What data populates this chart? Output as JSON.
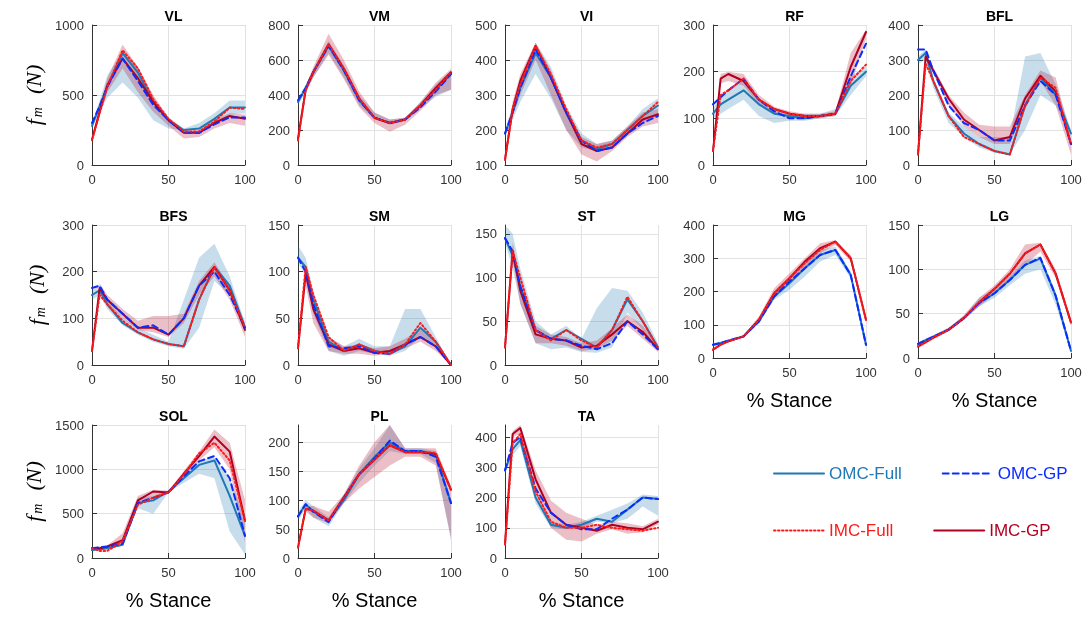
{
  "chart_data": [
    {
      "type": "line",
      "title": "VL",
      "ylabel": "f$_{m}$  (N)",
      "x": [
        0,
        5,
        10,
        20,
        30,
        40,
        50,
        60,
        70,
        80,
        90,
        100
      ],
      "xlim": [
        0,
        100
      ],
      "xticks": [
        0,
        50,
        100
      ],
      "ylim": [
        0,
        1000
      ],
      "yticks": [
        0,
        500,
        1000
      ],
      "grid": true,
      "marker": "none",
      "series": [
        {
          "color": "#1f78b4",
          "line_style": "solid",
          "values": [
            280,
            420,
            560,
            800,
            660,
            450,
            320,
            250,
            260,
            330,
            410,
            410
          ],
          "lower": [
            260,
            380,
            480,
            590,
            480,
            320,
            260,
            250,
            250,
            290,
            360,
            370
          ],
          "upper": [
            300,
            460,
            640,
            810,
            700,
            480,
            340,
            260,
            300,
            370,
            460,
            460
          ]
        },
        {
          "color": "#0a2cff",
          "line_style": "dashed",
          "values": [
            300,
            420,
            560,
            760,
            600,
            430,
            320,
            230,
            230,
            290,
            340,
            340
          ]
        },
        {
          "color": "#ff1a1a",
          "line_style": "dotted",
          "values": [
            180,
            370,
            560,
            820,
            690,
            470,
            330,
            240,
            240,
            310,
            410,
            400
          ]
        },
        {
          "color": "#b00020",
          "line_style": "solid",
          "values": [
            180,
            380,
            570,
            760,
            620,
            450,
            320,
            230,
            230,
            300,
            350,
            330
          ],
          "lower": [
            170,
            350,
            520,
            690,
            520,
            380,
            280,
            190,
            200,
            260,
            300,
            280
          ],
          "upper": [
            200,
            420,
            620,
            860,
            700,
            500,
            340,
            250,
            250,
            320,
            370,
            360
          ]
        }
      ]
    },
    {
      "type": "line",
      "title": "VM",
      "x": [
        0,
        5,
        10,
        20,
        30,
        40,
        50,
        60,
        70,
        80,
        90,
        100
      ],
      "xlim": [
        0,
        100
      ],
      "xticks": [
        0,
        50,
        100
      ],
      "ylim": [
        0,
        800
      ],
      "yticks": [
        0,
        200,
        400,
        600,
        800
      ],
      "grid": true,
      "marker": "none",
      "series": [
        {
          "color": "#1f78b4",
          "line_style": "solid",
          "values": [
            360,
            440,
            530,
            680,
            540,
            370,
            270,
            240,
            260,
            340,
            430,
            520
          ],
          "lower": [
            340,
            420,
            500,
            640,
            500,
            340,
            260,
            230,
            250,
            320,
            390,
            430
          ],
          "upper": [
            380,
            460,
            550,
            710,
            570,
            400,
            300,
            260,
            270,
            360,
            460,
            540
          ]
        },
        {
          "color": "#0a2cff",
          "line_style": "dashed",
          "values": [
            370,
            440,
            530,
            680,
            540,
            370,
            270,
            240,
            260,
            330,
            420,
            520
          ]
        },
        {
          "color": "#ff1a1a",
          "line_style": "dotted",
          "values": [
            140,
            430,
            530,
            690,
            550,
            380,
            270,
            240,
            260,
            340,
            430,
            530
          ]
        },
        {
          "color": "#b00020",
          "line_style": "solid",
          "values": [
            150,
            430,
            530,
            690,
            550,
            380,
            270,
            240,
            260,
            340,
            440,
            530
          ],
          "lower": [
            140,
            410,
            500,
            630,
            490,
            330,
            240,
            190,
            230,
            310,
            400,
            430
          ],
          "upper": [
            160,
            450,
            560,
            750,
            600,
            420,
            300,
            260,
            270,
            360,
            470,
            550
          ]
        }
      ]
    },
    {
      "type": "line",
      "title": "VI",
      "x": [
        0,
        5,
        10,
        20,
        30,
        40,
        50,
        60,
        70,
        80,
        90,
        100
      ],
      "xlim": [
        0,
        100
      ],
      "xticks": [
        0,
        50,
        100
      ],
      "ylim": [
        100,
        500
      ],
      "yticks": [
        100,
        200,
        300,
        400,
        500
      ],
      "grid": true,
      "marker": "none",
      "series": [
        {
          "color": "#1f78b4",
          "line_style": "solid",
          "values": [
            190,
            250,
            320,
            420,
            350,
            250,
            170,
            145,
            160,
            200,
            240,
            270
          ],
          "lower": [
            180,
            230,
            280,
            360,
            290,
            200,
            150,
            140,
            150,
            185,
            220,
            240
          ],
          "upper": [
            200,
            270,
            350,
            450,
            380,
            270,
            190,
            160,
            170,
            210,
            260,
            290
          ]
        },
        {
          "color": "#0a2cff",
          "line_style": "dashed",
          "values": [
            190,
            250,
            320,
            430,
            350,
            250,
            170,
            140,
            150,
            190,
            220,
            240
          ]
        },
        {
          "color": "#ff1a1a",
          "line_style": "dotted",
          "values": [
            115,
            260,
            330,
            440,
            360,
            260,
            170,
            150,
            160,
            200,
            240,
            280
          ]
        },
        {
          "color": "#b00020",
          "line_style": "solid",
          "values": [
            115,
            260,
            340,
            440,
            350,
            250,
            160,
            140,
            150,
            190,
            230,
            245
          ],
          "lower": [
            110,
            240,
            300,
            400,
            300,
            200,
            130,
            110,
            140,
            180,
            210,
            220
          ],
          "upper": [
            120,
            280,
            360,
            450,
            370,
            260,
            180,
            160,
            170,
            210,
            250,
            260
          ]
        }
      ]
    },
    {
      "type": "line",
      "title": "RF",
      "x": [
        0,
        5,
        10,
        20,
        30,
        40,
        50,
        60,
        70,
        80,
        90,
        100
      ],
      "xlim": [
        0,
        100
      ],
      "xticks": [
        0,
        50,
        100
      ],
      "ylim": [
        0,
        300
      ],
      "yticks": [
        0,
        100,
        200,
        300
      ],
      "grid": true,
      "marker": "none",
      "series": [
        {
          "color": "#1f78b4",
          "line_style": "solid",
          "values": [
            110,
            130,
            140,
            160,
            130,
            110,
            105,
            100,
            105,
            110,
            170,
            200
          ],
          "lower": [
            100,
            110,
            120,
            140,
            105,
            90,
            95,
            95,
            100,
            105,
            150,
            190
          ],
          "upper": [
            120,
            150,
            160,
            180,
            140,
            120,
            110,
            110,
            110,
            120,
            190,
            210
          ]
        },
        {
          "color": "#0a2cff",
          "line_style": "dashed",
          "values": [
            130,
            145,
            160,
            185,
            140,
            115,
            100,
            100,
            105,
            110,
            190,
            260
          ]
        },
        {
          "color": "#ff1a1a",
          "line_style": "dotted",
          "values": [
            30,
            150,
            160,
            185,
            140,
            120,
            110,
            105,
            105,
            110,
            180,
            215
          ]
        },
        {
          "color": "#b00020",
          "line_style": "solid",
          "values": [
            30,
            185,
            195,
            180,
            140,
            120,
            110,
            105,
            105,
            110,
            210,
            285
          ],
          "lower": [
            30,
            175,
            180,
            170,
            130,
            110,
            100,
            100,
            100,
            105,
            170,
            270
          ],
          "upper": [
            35,
            195,
            200,
            195,
            150,
            125,
            115,
            110,
            110,
            115,
            240,
            290
          ]
        }
      ]
    },
    {
      "type": "line",
      "title": "BFL",
      "x": [
        0,
        5,
        10,
        20,
        30,
        40,
        50,
        60,
        70,
        80,
        90,
        100
      ],
      "xlim": [
        0,
        100
      ],
      "xticks": [
        0,
        50,
        100
      ],
      "ylim": [
        0,
        400
      ],
      "yticks": [
        0,
        100,
        200,
        300,
        400
      ],
      "grid": true,
      "marker": "none",
      "series": [
        {
          "color": "#1f78b4",
          "line_style": "solid",
          "values": [
            300,
            320,
            240,
            140,
            90,
            60,
            40,
            30,
            170,
            250,
            200,
            90
          ],
          "lower": [
            290,
            300,
            220,
            120,
            80,
            50,
            35,
            30,
            100,
            200,
            170,
            80
          ],
          "upper": [
            310,
            330,
            250,
            150,
            110,
            80,
            80,
            80,
            310,
            320,
            230,
            100
          ]
        },
        {
          "color": "#0a2cff",
          "line_style": "dashed",
          "values": [
            330,
            330,
            270,
            170,
            120,
            100,
            70,
            70,
            170,
            240,
            200,
            60
          ]
        },
        {
          "color": "#ff1a1a",
          "line_style": "dotted",
          "values": [
            30,
            290,
            240,
            140,
            80,
            60,
            40,
            30,
            170,
            250,
            220,
            60
          ]
        },
        {
          "color": "#b00020",
          "line_style": "solid",
          "values": [
            30,
            310,
            270,
            190,
            130,
            100,
            70,
            80,
            190,
            255,
            210,
            60
          ],
          "lower": [
            30,
            300,
            260,
            170,
            110,
            80,
            60,
            60,
            160,
            240,
            170,
            30
          ],
          "upper": [
            35,
            320,
            280,
            200,
            150,
            115,
            110,
            110,
            200,
            270,
            250,
            80
          ]
        }
      ]
    },
    {
      "type": "line",
      "title": "BFS",
      "ylabel": "f$_{m}$  (N)",
      "x": [
        0,
        5,
        10,
        20,
        30,
        40,
        50,
        60,
        70,
        80,
        90,
        100
      ],
      "xlim": [
        0,
        100
      ],
      "xticks": [
        0,
        50,
        100
      ],
      "ylim": [
        0,
        300
      ],
      "yticks": [
        0,
        100,
        200,
        300
      ],
      "grid": true,
      "marker": "none",
      "series": [
        {
          "color": "#1f78b4",
          "line_style": "solid",
          "values": [
            150,
            160,
            130,
            90,
            70,
            55,
            45,
            40,
            140,
            210,
            170,
            80
          ],
          "lower": [
            140,
            150,
            120,
            85,
            65,
            50,
            40,
            35,
            80,
            180,
            150,
            70
          ],
          "upper": [
            160,
            170,
            140,
            100,
            80,
            65,
            50,
            140,
            230,
            260,
            190,
            90
          ]
        },
        {
          "color": "#0a2cff",
          "line_style": "dashed",
          "values": [
            165,
            170,
            140,
            110,
            80,
            85,
            65,
            100,
            170,
            200,
            150,
            80
          ]
        },
        {
          "color": "#ff1a1a",
          "line_style": "dotted",
          "values": [
            30,
            150,
            130,
            95,
            70,
            55,
            45,
            40,
            140,
            210,
            160,
            80
          ]
        },
        {
          "color": "#b00020",
          "line_style": "solid",
          "values": [
            30,
            165,
            140,
            110,
            80,
            80,
            65,
            100,
            170,
            210,
            160,
            75
          ],
          "lower": [
            30,
            155,
            130,
            100,
            75,
            70,
            60,
            90,
            150,
            190,
            140,
            60
          ],
          "upper": [
            35,
            175,
            150,
            120,
            95,
            105,
            105,
            110,
            180,
            220,
            170,
            90
          ]
        }
      ]
    },
    {
      "type": "line",
      "title": "SM",
      "x": [
        0,
        5,
        10,
        20,
        30,
        40,
        50,
        60,
        70,
        80,
        90,
        100
      ],
      "xlim": [
        0,
        100
      ],
      "xticks": [
        0,
        50,
        100
      ],
      "ylim": [
        0,
        150
      ],
      "yticks": [
        0,
        50,
        100,
        150
      ],
      "grid": true,
      "marker": "none",
      "series": [
        {
          "color": "#1f78b4",
          "line_style": "solid",
          "values": [
            115,
            105,
            70,
            25,
            15,
            22,
            15,
            12,
            20,
            40,
            25,
            0
          ],
          "lower": [
            110,
            95,
            55,
            15,
            10,
            15,
            12,
            10,
            15,
            30,
            20,
            0
          ],
          "upper": [
            128,
            115,
            80,
            30,
            20,
            28,
            20,
            20,
            60,
            60,
            30,
            0
          ]
        },
        {
          "color": "#0a2cff",
          "line_style": "dashed",
          "values": [
            115,
            100,
            65,
            20,
            18,
            20,
            13,
            12,
            22,
            30,
            20,
            0
          ]
        },
        {
          "color": "#ff1a1a",
          "line_style": "dotted",
          "values": [
            18,
            105,
            75,
            30,
            15,
            22,
            15,
            12,
            22,
            45,
            25,
            0
          ]
        },
        {
          "color": "#b00020",
          "line_style": "solid",
          "values": [
            18,
            98,
            60,
            22,
            15,
            18,
            13,
            15,
            22,
            30,
            20,
            0
          ],
          "lower": [
            15,
            85,
            45,
            15,
            12,
            12,
            10,
            12,
            18,
            25,
            15,
            0
          ],
          "upper": [
            20,
            105,
            70,
            30,
            20,
            22,
            18,
            20,
            28,
            38,
            25,
            0
          ]
        }
      ]
    },
    {
      "type": "line",
      "title": "ST",
      "x": [
        0,
        5,
        10,
        20,
        30,
        40,
        50,
        60,
        70,
        80,
        90,
        100
      ],
      "xlim": [
        0,
        100
      ],
      "xticks": [
        0,
        50,
        100
      ],
      "ylim": [
        0,
        160
      ],
      "yticks": [
        0,
        50,
        100,
        150
      ],
      "grid": true,
      "marker": "none",
      "series": [
        {
          "color": "#1f78b4",
          "line_style": "solid",
          "values": [
            145,
            125,
            90,
            40,
            30,
            40,
            30,
            20,
            40,
            75,
            50,
            20
          ],
          "lower": [
            140,
            110,
            70,
            25,
            18,
            20,
            15,
            14,
            20,
            60,
            40,
            18
          ],
          "upper": [
            160,
            150,
            110,
            50,
            35,
            45,
            30,
            65,
            88,
            85,
            60,
            25
          ]
        },
        {
          "color": "#0a2cff",
          "line_style": "dashed",
          "values": [
            145,
            130,
            90,
            40,
            30,
            28,
            22,
            18,
            25,
            50,
            35,
            18
          ]
        },
        {
          "color": "#ff1a1a",
          "line_style": "dotted",
          "values": [
            20,
            130,
            100,
            40,
            28,
            40,
            28,
            20,
            40,
            78,
            50,
            20
          ]
        },
        {
          "color": "#b00020",
          "line_style": "solid",
          "values": [
            20,
            130,
            85,
            35,
            30,
            28,
            20,
            22,
            35,
            50,
            38,
            18
          ],
          "lower": [
            18,
            120,
            70,
            25,
            25,
            22,
            16,
            18,
            28,
            45,
            30,
            15
          ],
          "upper": [
            25,
            140,
            100,
            45,
            35,
            32,
            25,
            28,
            42,
            58,
            45,
            22
          ]
        }
      ]
    },
    {
      "type": "line",
      "title": "MG",
      "xlabel": "% Stance",
      "x": [
        0,
        5,
        10,
        20,
        30,
        40,
        50,
        60,
        70,
        80,
        90,
        100
      ],
      "xlim": [
        0,
        100
      ],
      "xticks": [
        0,
        50,
        100
      ],
      "ylim": [
        0,
        400
      ],
      "yticks": [
        0,
        100,
        200,
        300,
        400
      ],
      "grid": true,
      "marker": "none",
      "series": [
        {
          "color": "#1f78b4",
          "line_style": "solid",
          "values": [
            40,
            45,
            52,
            65,
            110,
            185,
            225,
            270,
            310,
            325,
            250,
            40
          ],
          "lower": [
            35,
            40,
            48,
            62,
            105,
            175,
            205,
            245,
            290,
            310,
            240,
            30
          ],
          "upper": [
            45,
            50,
            56,
            70,
            120,
            200,
            245,
            290,
            325,
            335,
            260,
            50
          ]
        },
        {
          "color": "#0a2cff",
          "line_style": "dashed",
          "values": [
            40,
            45,
            52,
            65,
            110,
            185,
            230,
            270,
            310,
            325,
            250,
            40
          ]
        },
        {
          "color": "#ff1a1a",
          "line_style": "dotted",
          "values": [
            25,
            40,
            50,
            65,
            115,
            195,
            240,
            285,
            325,
            350,
            300,
            115
          ]
        },
        {
          "color": "#b00020",
          "line_style": "solid",
          "values": [
            25,
            40,
            50,
            65,
            115,
            195,
            240,
            290,
            330,
            350,
            300,
            115
          ],
          "lower": [
            22,
            38,
            48,
            62,
            110,
            180,
            225,
            270,
            315,
            340,
            290,
            105
          ],
          "upper": [
            28,
            42,
            52,
            68,
            125,
            210,
            255,
            300,
            345,
            355,
            310,
            125
          ]
        }
      ]
    },
    {
      "type": "line",
      "title": "LG",
      "xlabel": "% Stance",
      "x": [
        0,
        5,
        10,
        20,
        30,
        40,
        50,
        60,
        70,
        80,
        90,
        100
      ],
      "xlim": [
        0,
        100
      ],
      "xticks": [
        0,
        50,
        100
      ],
      "ylim": [
        0,
        150
      ],
      "yticks": [
        0,
        50,
        100,
        150
      ],
      "grid": true,
      "marker": "none",
      "series": [
        {
          "color": "#1f78b4",
          "line_style": "solid",
          "values": [
            16,
            20,
            24,
            32,
            45,
            62,
            73,
            88,
            105,
            112,
            70,
            8
          ],
          "lower": [
            14,
            18,
            22,
            30,
            43,
            58,
            68,
            82,
            95,
            100,
            60,
            6
          ],
          "upper": [
            18,
            22,
            26,
            34,
            48,
            68,
            78,
            92,
            110,
            115,
            75,
            10
          ]
        },
        {
          "color": "#0a2cff",
          "line_style": "dashed",
          "values": [
            16,
            20,
            24,
            32,
            45,
            62,
            73,
            88,
            105,
            113,
            70,
            8
          ]
        },
        {
          "color": "#ff1a1a",
          "line_style": "dotted",
          "values": [
            13,
            18,
            23,
            32,
            45,
            63,
            78,
            95,
            118,
            128,
            95,
            40
          ]
        },
        {
          "color": "#b00020",
          "line_style": "solid",
          "values": [
            13,
            18,
            23,
            32,
            45,
            63,
            78,
            95,
            118,
            128,
            95,
            40
          ],
          "lower": [
            11,
            16,
            21,
            30,
            43,
            58,
            72,
            88,
            105,
            120,
            90,
            36
          ],
          "upper": [
            15,
            20,
            25,
            34,
            48,
            68,
            82,
            100,
            128,
            130,
            100,
            44
          ]
        }
      ]
    },
    {
      "type": "line",
      "title": "SOL",
      "xlabel": "% Stance",
      "ylabel": "f$_{m}$  (N)",
      "x": [
        0,
        5,
        10,
        20,
        30,
        40,
        50,
        60,
        70,
        80,
        90,
        100
      ],
      "xlim": [
        0,
        100
      ],
      "xticks": [
        0,
        50,
        100
      ],
      "ylim": [
        0,
        1500
      ],
      "yticks": [
        0,
        500,
        1000,
        1500
      ],
      "grid": true,
      "marker": "none",
      "series": [
        {
          "color": "#1f78b4",
          "line_style": "solid",
          "values": [
            90,
            100,
            110,
            150,
            620,
            650,
            750,
            900,
            1050,
            1100,
            700,
            250
          ],
          "lower": [
            80,
            90,
            100,
            140,
            560,
            500,
            740,
            850,
            950,
            900,
            300,
            40
          ],
          "upper": [
            100,
            110,
            120,
            170,
            680,
            700,
            760,
            950,
            1100,
            1130,
            900,
            450
          ]
        },
        {
          "color": "#0a2cff",
          "line_style": "dashed",
          "values": [
            110,
            120,
            130,
            160,
            620,
            680,
            740,
            920,
            1090,
            1150,
            900,
            250
          ]
        },
        {
          "color": "#ff1a1a",
          "line_style": "dotted",
          "values": [
            110,
            80,
            80,
            190,
            600,
            680,
            740,
            940,
            1180,
            1300,
            1100,
            420
          ]
        },
        {
          "color": "#b00020",
          "line_style": "solid",
          "values": [
            110,
            110,
            130,
            200,
            650,
            750,
            740,
            950,
            1150,
            1370,
            1200,
            420
          ],
          "lower": [
            100,
            90,
            100,
            150,
            590,
            700,
            720,
            920,
            1100,
            1250,
            1000,
            180
          ],
          "upper": [
            120,
            130,
            140,
            280,
            700,
            770,
            760,
            980,
            1200,
            1450,
            1300,
            650
          ]
        }
      ]
    },
    {
      "type": "line",
      "title": "PL",
      "xlabel": "% Stance",
      "x": [
        0,
        5,
        10,
        20,
        30,
        40,
        50,
        60,
        70,
        80,
        90,
        100
      ],
      "xlim": [
        0,
        100
      ],
      "xticks": [
        0,
        50,
        100
      ],
      "ylim": [
        0,
        230
      ],
      "yticks": [
        0,
        50,
        100,
        150,
        200
      ],
      "grid": true,
      "marker": "none",
      "series": [
        {
          "color": "#1f78b4",
          "line_style": "solid",
          "values": [
            72,
            93,
            80,
            65,
            100,
            145,
            175,
            200,
            185,
            185,
            180,
            95
          ],
          "lower": [
            65,
            85,
            70,
            55,
            95,
            130,
            160,
            185,
            180,
            180,
            165,
            30
          ],
          "upper": [
            80,
            100,
            90,
            70,
            110,
            155,
            190,
            230,
            190,
            190,
            185,
            100
          ]
        },
        {
          "color": "#0a2cff",
          "line_style": "dashed",
          "values": [
            72,
            93,
            80,
            62,
            105,
            145,
            172,
            203,
            185,
            185,
            175,
            95
          ]
        },
        {
          "color": "#ff1a1a",
          "line_style": "dotted",
          "values": [
            18,
            85,
            82,
            65,
            105,
            145,
            170,
            195,
            183,
            183,
            182,
            118
          ]
        },
        {
          "color": "#b00020",
          "line_style": "solid",
          "values": [
            18,
            85,
            82,
            65,
            105,
            145,
            170,
            195,
            183,
            183,
            180,
            118
          ],
          "lower": [
            16,
            80,
            70,
            60,
            95,
            120,
            140,
            160,
            175,
            175,
            160,
            35
          ],
          "upper": [
            20,
            90,
            90,
            80,
            110,
            160,
            200,
            230,
            190,
            190,
            190,
            125
          ]
        }
      ]
    },
    {
      "type": "line",
      "title": "TA",
      "xlabel": "% Stance",
      "x": [
        0,
        5,
        10,
        20,
        30,
        40,
        50,
        60,
        70,
        80,
        90,
        100
      ],
      "xlim": [
        0,
        100
      ],
      "xticks": [
        0,
        50,
        100
      ],
      "ylim": [
        0,
        440
      ],
      "yticks": [
        0,
        100,
        200,
        300,
        400
      ],
      "grid": true,
      "marker": "none",
      "legend": "right",
      "series": [
        {
          "name": "OMC-Full",
          "color": "#1f78b4",
          "line_style": "solid",
          "values": [
            290,
            360,
            390,
            200,
            110,
            100,
            110,
            130,
            120,
            160,
            200,
            195
          ],
          "lower": [
            280,
            340,
            370,
            180,
            100,
            95,
            100,
            120,
            115,
            130,
            170,
            140
          ],
          "upper": [
            300,
            380,
            400,
            220,
            120,
            110,
            120,
            140,
            160,
            180,
            210,
            205
          ]
        },
        {
          "name": "OMC-GP",
          "color": "#0a2cff",
          "line_style": "dashed",
          "values": [
            290,
            380,
            400,
            230,
            150,
            110,
            95,
            95,
            130,
            160,
            200,
            195
          ]
        },
        {
          "name": "IMC-Full",
          "color": "#ff1a1a",
          "line_style": "dotted",
          "values": [
            45,
            380,
            410,
            220,
            120,
            100,
            100,
            110,
            100,
            95,
            90,
            100
          ]
        },
        {
          "name": "IMC-GP",
          "color": "#b00020",
          "line_style": "solid",
          "values": [
            45,
            410,
            430,
            260,
            150,
            110,
            100,
            90,
            110,
            100,
            95,
            120
          ],
          "lower": [
            40,
            400,
            410,
            220,
            100,
            60,
            55,
            80,
            95,
            80,
            85,
            110
          ],
          "upper": [
            50,
            420,
            440,
            290,
            190,
            150,
            130,
            110,
            120,
            115,
            105,
            130
          ]
        }
      ]
    }
  ]
}
